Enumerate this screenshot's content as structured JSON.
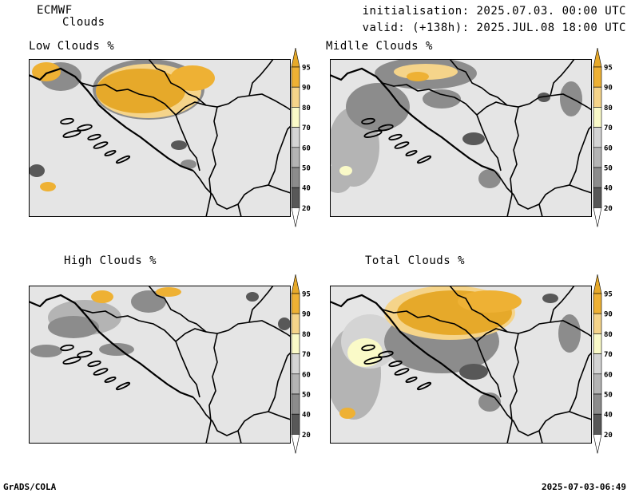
{
  "header": {
    "model": "ECMWF",
    "product": "Clouds",
    "init": "initialisation: 2025.07.03. 00:00 UTC",
    "valid": "valid: (+138h): 2025.JUL.08 18:00 UTC"
  },
  "panels": [
    {
      "title": "Low Clouds %"
    },
    {
      "title": "Midlle Clouds %"
    },
    {
      "title": "High Clouds %"
    },
    {
      "title": "Total Clouds %"
    }
  ],
  "legend": {
    "levels": [
      "20",
      "40",
      "50",
      "60",
      "70",
      "80",
      "90",
      "95"
    ],
    "colors": [
      "#ffffff",
      "#585858",
      "#8c8c8c",
      "#b4b4b4",
      "#d4d4d4",
      "#fafac8",
      "#f5d48a",
      "#eeb134",
      "#e6a92a"
    ]
  },
  "footer": {
    "left": "GrADS/COLA",
    "right": "2025-07-03-06:49"
  }
}
